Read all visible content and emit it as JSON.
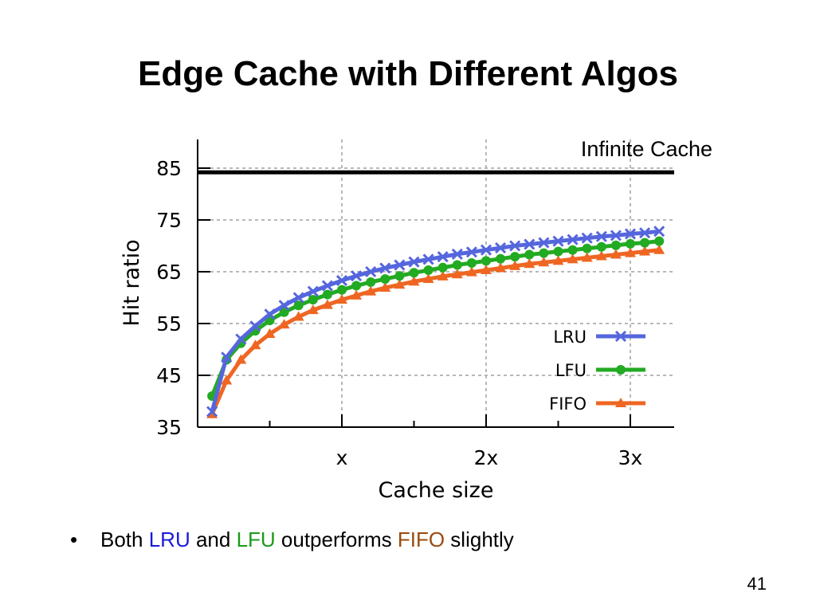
{
  "slide": {
    "title": "Edge Cache with Different Algos",
    "page_number": "41"
  },
  "bullet": {
    "marker": "•",
    "parts": [
      {
        "text": "Both ",
        "color": "#000000"
      },
      {
        "text": "LRU",
        "color": "#1a1adb"
      },
      {
        "text": " and ",
        "color": "#000000"
      },
      {
        "text": "LFU",
        "color": "#1a9a1a"
      },
      {
        "text": " outperforms ",
        "color": "#000000"
      },
      {
        "text": "FIFO",
        "color": "#9a4a10"
      },
      {
        "text": " slightly",
        "color": "#000000"
      }
    ]
  },
  "chart_data": {
    "type": "line",
    "xlabel": "Cache size",
    "ylabel": "Hit ratio",
    "xlim": [
      0.1,
      3.3
    ],
    "ylim": [
      35,
      85
    ],
    "x_ticks": [
      {
        "value": 1,
        "label": "x"
      },
      {
        "value": 2,
        "label": "2x"
      },
      {
        "value": 3,
        "label": "3x"
      }
    ],
    "x_minor_ticks": [
      0.5,
      1.5,
      2.5
    ],
    "y_ticks": [
      35,
      45,
      55,
      65,
      75,
      85
    ],
    "grid": true,
    "legend_position": "bottom-right",
    "reference_line": {
      "value": 84.2,
      "label": "Infinite Cache",
      "color": "#000000"
    },
    "series": [
      {
        "name": "LRU",
        "color": "#5566dd",
        "marker": "x",
        "x": [
          0.1,
          0.2,
          0.3,
          0.4,
          0.5,
          0.6,
          0.7,
          0.8,
          0.9,
          1.0,
          1.1,
          1.2,
          1.3,
          1.4,
          1.5,
          1.6,
          1.7,
          1.8,
          1.9,
          2.0,
          2.1,
          2.2,
          2.3,
          2.4,
          2.5,
          2.6,
          2.7,
          2.8,
          2.9,
          3.0,
          3.1,
          3.2
        ],
        "y": [
          38.0,
          48.5,
          52.0,
          54.5,
          56.8,
          58.5,
          60.0,
          61.2,
          62.3,
          63.3,
          64.2,
          65.0,
          65.7,
          66.3,
          66.9,
          67.4,
          67.9,
          68.4,
          68.8,
          69.2,
          69.6,
          70.0,
          70.3,
          70.6,
          70.9,
          71.2,
          71.5,
          71.8,
          72.0,
          72.3,
          72.5,
          72.8
        ]
      },
      {
        "name": "LFU",
        "color": "#22aa22",
        "marker": "o",
        "x": [
          0.1,
          0.2,
          0.3,
          0.4,
          0.5,
          0.6,
          0.7,
          0.8,
          0.9,
          1.0,
          1.1,
          1.2,
          1.3,
          1.4,
          1.5,
          1.6,
          1.7,
          1.8,
          1.9,
          2.0,
          2.1,
          2.2,
          2.3,
          2.4,
          2.5,
          2.6,
          2.7,
          2.8,
          2.9,
          3.0,
          3.1,
          3.2
        ],
        "y": [
          41.0,
          48.0,
          51.2,
          53.6,
          55.6,
          57.2,
          58.5,
          59.6,
          60.6,
          61.5,
          62.3,
          63.0,
          63.6,
          64.2,
          64.8,
          65.3,
          65.8,
          66.3,
          66.7,
          67.1,
          67.5,
          67.9,
          68.3,
          68.6,
          68.9,
          69.2,
          69.5,
          69.8,
          70.1,
          70.4,
          70.6,
          70.9
        ]
      },
      {
        "name": "FIFO",
        "color": "#ee6622",
        "marker": "triangle",
        "x": [
          0.1,
          0.2,
          0.3,
          0.4,
          0.5,
          0.6,
          0.7,
          0.8,
          0.9,
          1.0,
          1.1,
          1.2,
          1.3,
          1.4,
          1.5,
          1.6,
          1.7,
          1.8,
          1.9,
          2.0,
          2.1,
          2.2,
          2.3,
          2.4,
          2.5,
          2.6,
          2.7,
          2.8,
          2.9,
          3.0,
          3.1,
          3.2
        ],
        "y": [
          37.5,
          44.0,
          48.0,
          50.8,
          53.0,
          54.8,
          56.3,
          57.6,
          58.6,
          59.6,
          60.4,
          61.2,
          61.9,
          62.5,
          63.1,
          63.6,
          64.1,
          64.5,
          64.9,
          65.3,
          65.7,
          66.1,
          66.5,
          66.8,
          67.1,
          67.4,
          67.7,
          68.0,
          68.3,
          68.6,
          68.9,
          69.2
        ]
      }
    ]
  }
}
